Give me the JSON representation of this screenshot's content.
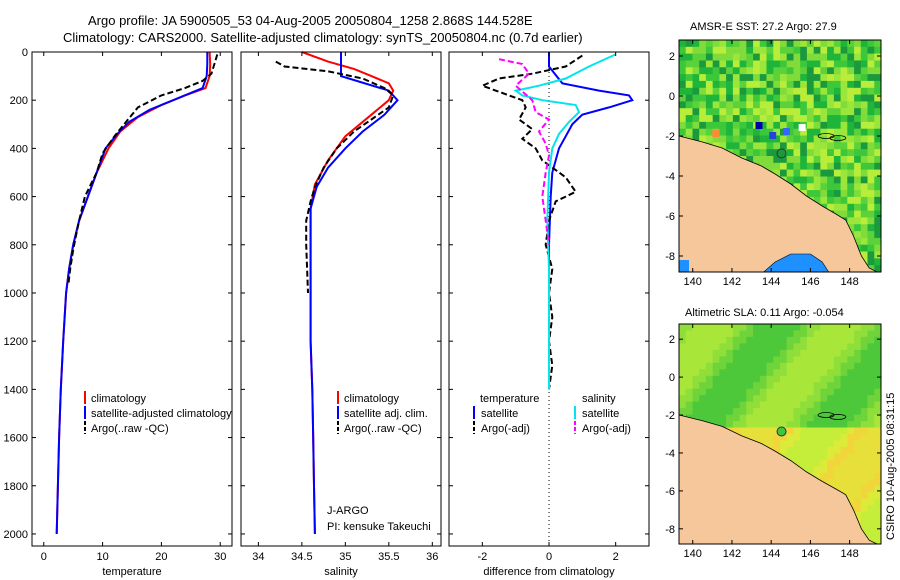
{
  "header": {
    "line1": "Argo profile: JA 5900505_53 04-Aug-2005 20050804_1258 2.868S 144.528E",
    "line2": "Climatology: CARS2000. Satellite-adjusted climatology: synTS_20050804.nc (0.7d earlier)"
  },
  "colors": {
    "climatology": "#ff0000",
    "satellite": "#0000ff",
    "argo": "#000000",
    "salinity_satellite": "#00e5ee",
    "salinity_argo": "#ff00ff",
    "land": "#f5c79a"
  },
  "credit": "CSIRO 10-Aug-2005 08:31:15",
  "float_info": {
    "program": "J-ARGO",
    "pi": "PI: kensuke Takeuchi"
  },
  "chart_data": [
    {
      "id": "temperature",
      "type": "line",
      "xlabel": "temperature",
      "ylabel": "",
      "xlim": [
        -2,
        32
      ],
      "ylim": [
        2050,
        0
      ],
      "xticks": [
        0,
        10,
        20,
        30
      ],
      "yticks": [
        0,
        200,
        400,
        600,
        800,
        1000,
        1200,
        1400,
        1600,
        1800,
        2000
      ],
      "legend": [
        "climatology",
        "satellite-adjusted climatology",
        "Argo(..raw -QC)"
      ],
      "series": [
        {
          "name": "climatology",
          "color": "#ff0000",
          "dash": "",
          "points": [
            [
              28.2,
              0
            ],
            [
              28.3,
              50
            ],
            [
              28.2,
              100
            ],
            [
              27.5,
              150
            ],
            [
              24,
              180
            ],
            [
              20,
              220
            ],
            [
              16,
              270
            ],
            [
              13,
              330
            ],
            [
              11,
              400
            ],
            [
              9,
              500
            ],
            [
              7.5,
              600
            ],
            [
              6,
              700
            ],
            [
              5,
              800
            ],
            [
              4.3,
              900
            ],
            [
              3.8,
              1000
            ],
            [
              3.3,
              1200
            ],
            [
              2.9,
              1400
            ],
            [
              2.6,
              1600
            ],
            [
              2.4,
              1800
            ],
            [
              2.2,
              2000
            ]
          ]
        },
        {
          "name": "satellite-adjusted climatology",
          "color": "#0000ff",
          "dash": "",
          "points": [
            [
              27.8,
              0
            ],
            [
              27.8,
              50
            ],
            [
              27.7,
              100
            ],
            [
              27,
              150
            ],
            [
              22,
              200
            ],
            [
              18,
              240
            ],
            [
              14.5,
              290
            ],
            [
              12.5,
              340
            ],
            [
              10.5,
              400
            ],
            [
              9,
              500
            ],
            [
              7.5,
              600
            ],
            [
              6,
              700
            ],
            [
              5,
              800
            ],
            [
              4.3,
              900
            ],
            [
              3.8,
              1000
            ],
            [
              3.3,
              1200
            ],
            [
              2.9,
              1400
            ],
            [
              2.6,
              1600
            ],
            [
              2.4,
              1800
            ],
            [
              2.2,
              2000
            ]
          ]
        },
        {
          "name": "Argo(..raw -QC)",
          "color": "#000000",
          "dash": "6,3",
          "points": [
            [
              29.5,
              10
            ],
            [
              29,
              50
            ],
            [
              28.5,
              90
            ],
            [
              27,
              120
            ],
            [
              24,
              150
            ],
            [
              20,
              180
            ],
            [
              16,
              230
            ],
            [
              14,
              290
            ],
            [
              12,
              350
            ],
            [
              10,
              420
            ],
            [
              9,
              500
            ],
            [
              8,
              550
            ],
            [
              7,
              600
            ],
            [
              6.5,
              650
            ],
            [
              6,
              700
            ],
            [
              5.5,
              760
            ],
            [
              5,
              820
            ],
            [
              4.5,
              900
            ],
            [
              4.2,
              960
            ]
          ]
        }
      ]
    },
    {
      "id": "salinity",
      "type": "line",
      "xlabel": "salinity",
      "ylabel": "",
      "xlim": [
        33.8,
        36.1
      ],
      "ylim": [
        2050,
        0
      ],
      "xticks": [
        34,
        34.5,
        35,
        35.5,
        36
      ],
      "legend": [
        "climatology",
        "satellite adj. clim.",
        "Argo(..raw -QC)"
      ],
      "series": [
        {
          "name": "climatology",
          "color": "#ff0000",
          "dash": "",
          "points": [
            [
              34.5,
              0
            ],
            [
              34.8,
              40
            ],
            [
              35.1,
              70
            ],
            [
              35.3,
              100
            ],
            [
              35.5,
              130
            ],
            [
              35.55,
              160
            ],
            [
              35.5,
              200
            ],
            [
              35.3,
              260
            ],
            [
              35,
              350
            ],
            [
              34.8,
              450
            ],
            [
              34.65,
              550
            ],
            [
              34.6,
              650
            ],
            [
              34.6,
              800
            ],
            [
              34.6,
              1000
            ],
            [
              34.6,
              1200
            ],
            [
              34.62,
              1400
            ],
            [
              34.63,
              1600
            ],
            [
              34.64,
              1800
            ],
            [
              34.65,
              2000
            ]
          ]
        },
        {
          "name": "satellite adj. clim.",
          "color": "#0000ff",
          "dash": "",
          "points": [
            [
              34.95,
              0
            ],
            [
              34.95,
              100
            ],
            [
              35.5,
              160
            ],
            [
              35.6,
              200
            ],
            [
              35.45,
              260
            ],
            [
              35.2,
              330
            ],
            [
              35,
              400
            ],
            [
              34.8,
              480
            ],
            [
              34.67,
              560
            ],
            [
              34.6,
              650
            ],
            [
              34.6,
              800
            ],
            [
              34.6,
              1000
            ],
            [
              34.6,
              1200
            ],
            [
              34.62,
              1400
            ],
            [
              34.63,
              1600
            ],
            [
              34.64,
              1800
            ],
            [
              34.65,
              2000
            ]
          ]
        },
        {
          "name": "Argo(..raw -QC)",
          "color": "#000000",
          "dash": "6,3",
          "points": [
            [
              34.2,
              40
            ],
            [
              34.3,
              60
            ],
            [
              34.55,
              70
            ],
            [
              34.8,
              80
            ],
            [
              35.2,
              110
            ],
            [
              35.45,
              150
            ],
            [
              35.55,
              180
            ],
            [
              35.5,
              230
            ],
            [
              35.3,
              280
            ],
            [
              35.1,
              330
            ],
            [
              34.9,
              400
            ],
            [
              34.75,
              480
            ],
            [
              34.65,
              560
            ],
            [
              34.6,
              620
            ],
            [
              34.55,
              700
            ],
            [
              34.55,
              800
            ],
            [
              34.56,
              900
            ],
            [
              34.57,
              1000
            ]
          ]
        }
      ]
    },
    {
      "id": "difference",
      "type": "line",
      "xlabel": "difference from climatology",
      "ylabel": "",
      "xlim": [
        -3,
        3
      ],
      "ylim": [
        2050,
        0
      ],
      "xticks": [
        -2,
        0,
        2
      ],
      "legend": [
        "temperature",
        "satellite",
        "Argo(-adj)",
        "salinity",
        "satellite",
        "Argo(-adj)"
      ],
      "series": [
        {
          "name": "temperature satellite",
          "color": "#0000ff",
          "dash": "",
          "points": [
            [
              0,
              0
            ],
            [
              0,
              60
            ],
            [
              0.4,
              130
            ],
            [
              1.5,
              160
            ],
            [
              2.4,
              180
            ],
            [
              2.5,
              200
            ],
            [
              1.8,
              230
            ],
            [
              1,
              260
            ],
            [
              0.7,
              300
            ],
            [
              0.5,
              350
            ],
            [
              0.3,
              400
            ],
            [
              0.1,
              500
            ],
            [
              0.05,
              600
            ],
            [
              0,
              800
            ],
            [
              0,
              1000
            ],
            [
              0,
              1200
            ],
            [
              0,
              1400
            ]
          ]
        },
        {
          "name": "temperature Argo(-adj)",
          "color": "#000000",
          "dash": "6,3",
          "points": [
            [
              1,
              15
            ],
            [
              0.5,
              60
            ],
            [
              -0.5,
              90
            ],
            [
              -1.5,
              110
            ],
            [
              -2,
              140
            ],
            [
              -1.2,
              180
            ],
            [
              -0.8,
              200
            ],
            [
              -0.7,
              230
            ],
            [
              -0.9,
              280
            ],
            [
              -0.5,
              320
            ],
            [
              -0.8,
              360
            ],
            [
              -0.4,
              400
            ],
            [
              -0.2,
              450
            ],
            [
              0.5,
              520
            ],
            [
              0.8,
              580
            ],
            [
              0.2,
              620
            ],
            [
              0,
              700
            ],
            [
              -0.1,
              800
            ],
            [
              0.1,
              900
            ],
            [
              0,
              1000
            ],
            [
              0.1,
              1100
            ],
            [
              0,
              1200
            ],
            [
              0.1,
              1300
            ],
            [
              0,
              1400
            ]
          ]
        },
        {
          "name": "salinity satellite",
          "color": "#00e5ee",
          "dash": "",
          "points": [
            [
              2,
              10
            ],
            [
              1.2,
              60
            ],
            [
              0.5,
              110
            ],
            [
              -0.3,
              140
            ],
            [
              -1,
              160
            ],
            [
              -0.8,
              180
            ],
            [
              -0.2,
              200
            ],
            [
              0.8,
              220
            ],
            [
              0.9,
              250
            ],
            [
              0.6,
              290
            ],
            [
              0.3,
              340
            ],
            [
              0.1,
              400
            ],
            [
              0,
              500
            ],
            [
              -0.05,
              700
            ],
            [
              0,
              900
            ],
            [
              0,
              1200
            ],
            [
              0,
              1400
            ]
          ]
        },
        {
          "name": "salinity Argo(-adj)",
          "color": "#ff00ff",
          "dash": "6,3",
          "points": [
            [
              -1.5,
              30
            ],
            [
              -0.8,
              50
            ],
            [
              -0.6,
              90
            ],
            [
              -1,
              140
            ],
            [
              -0.5,
              200
            ],
            [
              -0.4,
              250
            ],
            [
              0,
              280
            ],
            [
              -0.3,
              330
            ],
            [
              -0.1,
              380
            ],
            [
              0,
              430
            ],
            [
              -0.1,
              500
            ],
            [
              -0.2,
              600
            ],
            [
              -0.1,
              700
            ],
            [
              0,
              800
            ]
          ]
        }
      ]
    },
    {
      "id": "sst_map",
      "type": "heatmap",
      "title": "AMSR-E SST: 27.2 Argo: 27.9",
      "xlim": [
        139.3,
        149.6
      ],
      "ylim": [
        -8.8,
        2.8
      ],
      "xticks": [
        140,
        142,
        144,
        146,
        148
      ],
      "yticks": [
        -8,
        -6,
        -4,
        -2,
        0,
        2
      ],
      "float_position": [
        144.528,
        -2.868
      ]
    },
    {
      "id": "sla_map",
      "type": "heatmap",
      "title": "Altimetric SLA: 0.11 Argo: -0.054",
      "xlim": [
        139.3,
        149.6
      ],
      "ylim": [
        -8.8,
        2.8
      ],
      "xticks": [
        140,
        142,
        144,
        146,
        148
      ],
      "yticks": [
        -8,
        -6,
        -4,
        -2,
        0,
        2
      ],
      "float_position": [
        144.528,
        -2.868
      ]
    }
  ]
}
